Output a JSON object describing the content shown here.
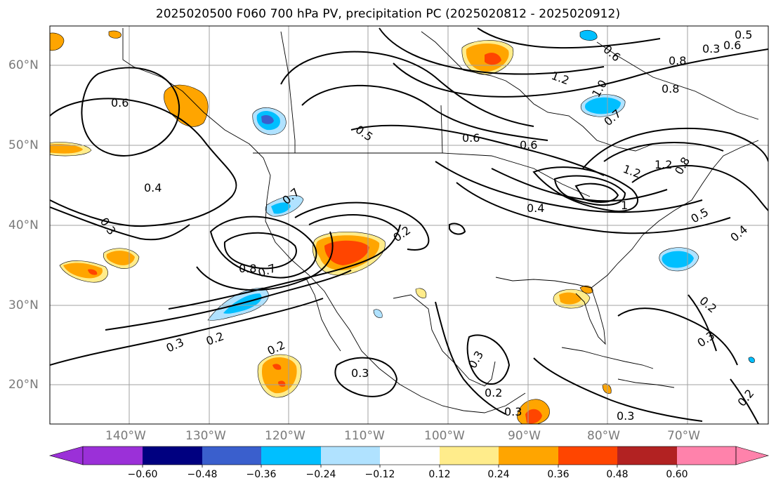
{
  "title": "2025020500 F060 700 hPa PV, precipitation PC (2025020812 - 2025020912)",
  "map": {
    "region": "North America",
    "lat_labels": [
      "60°N",
      "50°N",
      "40°N",
      "30°N",
      "20°N"
    ],
    "lon_labels": [
      "140°W",
      "130°W",
      "120°W",
      "110°W",
      "100°W",
      "90°W",
      "80°W",
      "70°W"
    ],
    "contour_labels": [
      "0.6",
      "0.4",
      "0.3",
      "0.5",
      "0.7",
      "0.8",
      "0.7",
      "0.2",
      "0.3",
      "0.2",
      "0.3",
      "0.2",
      "0.3",
      "0.6",
      "0.6",
      "0.4",
      "1.2",
      "0.8",
      "0.8",
      "0.6",
      "1.0",
      "0.7",
      "1.2",
      "1.2",
      "0.8",
      "1",
      "0.5",
      "0.4",
      "0.2",
      "0.3",
      "0.3",
      "0.2",
      "0.2",
      "0.3",
      "0.5",
      "0.6",
      "0.3"
    ]
  },
  "colorbar": {
    "ticks": [
      "−0.60",
      "−0.48",
      "−0.36",
      "−0.24",
      "−0.12",
      "0.12",
      "0.24",
      "0.36",
      "0.48",
      "0.60"
    ],
    "colors": [
      "#9b30d8",
      "#000080",
      "#3a5fcd",
      "#00bfff",
      "#b0e2ff",
      "#ffffff",
      "#ffec8b",
      "#ffa500",
      "#ff4500",
      "#b22222",
      "#ff82ab",
      "#ff82ab"
    ]
  }
}
